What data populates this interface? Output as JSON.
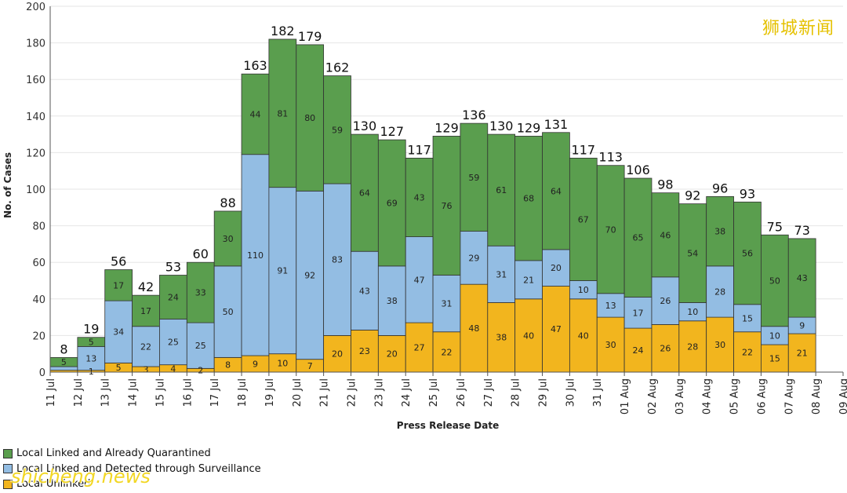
{
  "chart_data": {
    "type": "bar",
    "stacked": true,
    "categories": [
      "12 Jul",
      "13 Jul",
      "14 Jul",
      "15 Jul",
      "16 Jul",
      "17 Jul",
      "18 Jul",
      "19 Jul",
      "20 Jul",
      "21 Jul",
      "22 Jul",
      "23 Jul",
      "24 Jul",
      "25 Jul",
      "26 Jul",
      "27 Jul",
      "28 Jul",
      "29 Jul",
      "30 Jul",
      "31 Jul",
      "01 Aug",
      "02 Aug",
      "03 Aug",
      "04 Aug",
      "05 Aug",
      "06 Aug",
      "07 Aug",
      "08 Aug"
    ],
    "x_ticks": [
      "11 Jul",
      "12 Jul",
      "13 Jul",
      "14 Jul",
      "15 Jul",
      "16 Jul",
      "17 Jul",
      "18 Jul",
      "19 Jul",
      "20 Jul",
      "21 Jul",
      "22 Jul",
      "23 Jul",
      "24 Jul",
      "25 Jul",
      "26 Jul",
      "27 Jul",
      "28 Jul",
      "29 Jul",
      "30 Jul",
      "31 Jul",
      "01 Aug",
      "02 Aug",
      "03 Aug",
      "04 Aug",
      "05 Aug",
      "06 Aug",
      "07 Aug",
      "08 Aug",
      "09 Aug"
    ],
    "series": [
      {
        "name": "Local Unlinked",
        "color": "#f2b51e",
        "values": [
          1,
          1,
          5,
          3,
          4,
          2,
          8,
          9,
          10,
          7,
          20,
          23,
          20,
          27,
          22,
          48,
          38,
          40,
          47,
          40,
          30,
          24,
          26,
          28,
          30,
          22,
          15,
          21
        ],
        "labels": [
          "",
          "1",
          "5",
          "3",
          "4",
          "2",
          "8",
          "9",
          "10",
          "7",
          "20",
          "23",
          "20",
          "27",
          "22",
          "48",
          "38",
          "40",
          "47",
          "40",
          "30",
          "24",
          "26",
          "28",
          "30",
          "22",
          "15",
          "21"
        ]
      },
      {
        "name": "Local Linked and Detected through Surveillance",
        "color": "#93bde3",
        "values": [
          2,
          13,
          34,
          22,
          25,
          25,
          50,
          110,
          91,
          92,
          83,
          43,
          38,
          47,
          31,
          29,
          31,
          21,
          20,
          10,
          13,
          17,
          26,
          10,
          28,
          15,
          10,
          9
        ],
        "labels": [
          "",
          "13",
          "34",
          "22",
          "25",
          "25",
          "50",
          "110",
          "91",
          "92",
          "83",
          "43",
          "38",
          "47",
          "31",
          "29",
          "31",
          "21",
          "20",
          "10",
          "13",
          "17",
          "26",
          "10",
          "28",
          "15",
          "10",
          "9"
        ]
      },
      {
        "name": "Local Linked and Already Quarantined",
        "color": "#5a9e4e",
        "values": [
          5,
          5,
          17,
          17,
          24,
          33,
          30,
          44,
          81,
          80,
          59,
          64,
          69,
          43,
          76,
          59,
          61,
          68,
          64,
          67,
          70,
          65,
          46,
          54,
          38,
          56,
          50,
          43
        ],
        "labels": [
          "5",
          "5",
          "17",
          "17",
          "24",
          "33",
          "30",
          "44",
          "81",
          "80",
          "59",
          "64",
          "69",
          "43",
          "76",
          "59",
          "61",
          "68",
          "64",
          "67",
          "70",
          "65",
          "46",
          "54",
          "38",
          "56",
          "50",
          "43"
        ]
      }
    ],
    "totals": [
      8,
      19,
      56,
      42,
      53,
      60,
      88,
      163,
      182,
      179,
      162,
      130,
      127,
      117,
      129,
      136,
      130,
      129,
      131,
      117,
      113,
      106,
      98,
      92,
      96,
      93,
      75,
      73
    ],
    "ylabel": "No. of Cases",
    "xlabel": "Press Release Date",
    "ylim": [
      0,
      200
    ],
    "yticks": [
      0,
      20,
      40,
      60,
      80,
      100,
      120,
      140,
      160,
      180,
      200
    ],
    "grid": true,
    "legend_position": "bottom-left",
    "legend_order": [
      "Local Linked and Already Quarantined",
      "Local Linked and Detected through Surveillance",
      "Local Unlinked"
    ]
  },
  "legend": {
    "items": [
      {
        "label": "Local Linked and Already Quarantined",
        "color": "#5a9e4e"
      },
      {
        "label": "Local Linked and Detected through Surveillance",
        "color": "#93bde3"
      },
      {
        "label": "Local Unlinked",
        "color": "#f2b51e"
      }
    ]
  },
  "watermarks": {
    "top_right": "狮城新闻",
    "bottom_left": "shicheng.news"
  }
}
